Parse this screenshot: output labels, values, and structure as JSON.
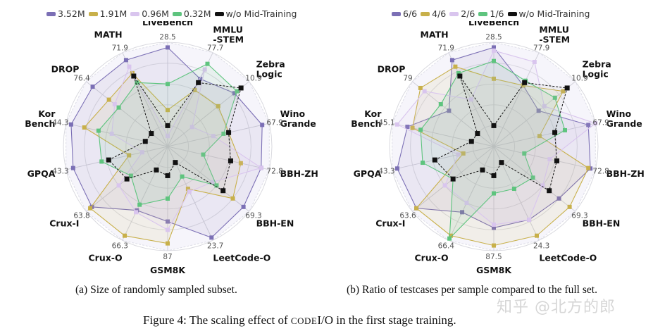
{
  "figure_caption": {
    "prefix": "Figure 4: The scaling effect of ",
    "smallcaps": "CODE",
    "suffix": "I/O in the first stage training."
  },
  "watermark": "知乎 @北方的郎",
  "chart_data": [
    {
      "type": "radar",
      "caption": "(a) Size of randomly sampled subset.",
      "legend_position": "top",
      "axes": [
        "LiveBench",
        "MMLU-STEM",
        "ZebraLogic",
        "WinoGrande",
        "BBH-ZH",
        "BBH-EN",
        "LeetCode-O",
        "GSM8K",
        "Crux-O",
        "Crux-I",
        "GPQA",
        "KorBench",
        "DROP",
        "MATH"
      ],
      "axis_label_lines": [
        [
          "LiveBench"
        ],
        [
          "MMLU",
          "-STEM"
        ],
        [
          "Zebra",
          "Logic"
        ],
        [
          "Wino",
          "Grande"
        ],
        [
          "BBH-ZH"
        ],
        [
          "BBH-EN"
        ],
        [
          "LeetCode-O"
        ],
        [
          "GSM8K"
        ],
        [
          "Crux-O"
        ],
        [
          "Crux-I"
        ],
        [
          "GPQA"
        ],
        [
          "Kor",
          "Bench"
        ],
        [
          "DROP"
        ],
        [
          "MATH"
        ]
      ],
      "max_value_labels": [
        "28.5",
        "77.7",
        "10.9",
        "67.9",
        "72.8",
        "69.3",
        "23.7",
        "87",
        "66.3",
        "63.8",
        "43.3",
        "44.3",
        "76.4",
        "71.9"
      ],
      "value_scale": "normalized per axis (1.0 = outer ring)",
      "series": [
        {
          "name": "3.52M",
          "color": "#7b6fb5",
          "values": [
            0.95,
            0.72,
            0.82,
            0.93,
            0.92,
            0.93,
            0.97,
            0.72,
            0.68,
            0.93,
            0.93,
            0.95,
            0.92,
            0.92
          ]
        },
        {
          "name": "1.91M",
          "color": "#c8b04a",
          "values": [
            0.35,
            0.6,
            0.62,
            0.6,
            0.72,
            0.8,
            0.45,
            0.93,
            0.95,
            0.95,
            0.38,
            0.82,
            0.72,
            0.78
          ]
        },
        {
          "name": "0.96M",
          "color": "#d9c5ee",
          "values": [
            0.1,
            0.82,
            0.3,
            0.45,
            0.92,
            0.55,
            0.48,
            0.8,
            0.7,
            0.6,
            0.25,
            0.55,
            0.65,
            0.85
          ]
        },
        {
          "name": "0.32M",
          "color": "#5ec47e",
          "values": [
            0.6,
            0.88,
            0.85,
            0.55,
            0.35,
            0.6,
            0.32,
            0.5,
            0.62,
            0.45,
            0.65,
            0.68,
            0.6,
            0.68
          ]
        },
        {
          "name": "w/o Mid-Training",
          "color": "#111111",
          "values": [
            0.2,
            0.68,
            0.9,
            0.6,
            0.62,
            0.68,
            0.17,
            0.28,
            0.25,
            0.5,
            0.58,
            0.22,
            0.2,
            0.75
          ]
        }
      ]
    },
    {
      "type": "radar",
      "caption": "(b) Ratio of testcases per sample compared to the full set.",
      "legend_position": "top",
      "axes": [
        "LiveBench",
        "MMLU-STEM",
        "ZebraLogic",
        "WinoGrande",
        "BBH-ZH",
        "BBH-EN",
        "LeetCode-O",
        "GSM8K",
        "Crux-O",
        "Crux-I",
        "GPQA",
        "KorBench",
        "DROP",
        "MATH"
      ],
      "axis_label_lines": [
        [
          "LiveBench"
        ],
        [
          "MMLU",
          "-STEM"
        ],
        [
          "Zebra",
          "Logic"
        ],
        [
          "Wino",
          "Grande"
        ],
        [
          "BBH-ZH"
        ],
        [
          "BBH-EN"
        ],
        [
          "LeetCode-O"
        ],
        [
          "GSM8K"
        ],
        [
          "Crux-O"
        ],
        [
          "Crux-I"
        ],
        [
          "GPQA"
        ],
        [
          "Kor",
          "Bench"
        ],
        [
          "DROP"
        ],
        [
          "MATH"
        ]
      ],
      "max_value_labels": [
        "28.5",
        "77.9",
        "10.9",
        "67.9",
        "72.8",
        "69.3",
        "24.3",
        "87.5",
        "66.4",
        "63.6",
        "43.3",
        "45.1",
        "79",
        "71.9"
      ],
      "value_scale": "normalized per axis (1.0 = outer ring)",
      "series": [
        {
          "name": "6/6",
          "color": "#7b6fb5",
          "values": [
            0.95,
            0.65,
            0.55,
            0.93,
            0.95,
            0.8,
            0.78,
            0.78,
            0.7,
            0.95,
            0.95,
            0.85,
            0.55,
            0.92
          ]
        },
        {
          "name": "4/6",
          "color": "#c8b04a",
          "values": [
            0.65,
            0.65,
            0.85,
            0.45,
            0.93,
            0.93,
            0.95,
            0.95,
            0.95,
            0.95,
            0.3,
            0.8,
            0.9,
            0.85
          ]
        },
        {
          "name": "2/6",
          "color": "#d9c5ee",
          "values": [
            0.92,
            0.9,
            0.62,
            1.0,
            0.55,
            0.6,
            0.78,
            0.75,
            0.6,
            0.6,
            0.35,
            0.95,
            0.85,
            0.5
          ]
        },
        {
          "name": "1/6",
          "color": "#5ec47e",
          "values": [
            0.82,
            0.7,
            0.75,
            0.7,
            0.3,
            0.48,
            0.45,
            0.45,
            0.98,
            0.5,
            0.7,
            0.72,
            0.65,
            0.78
          ]
        },
        {
          "name": "w/o Mid-Training",
          "color": "#111111",
          "values": [
            0.2,
            0.68,
            0.9,
            0.6,
            0.62,
            0.68,
            0.17,
            0.28,
            0.25,
            0.5,
            0.58,
            0.22,
            0.2,
            0.75
          ]
        }
      ]
    }
  ]
}
